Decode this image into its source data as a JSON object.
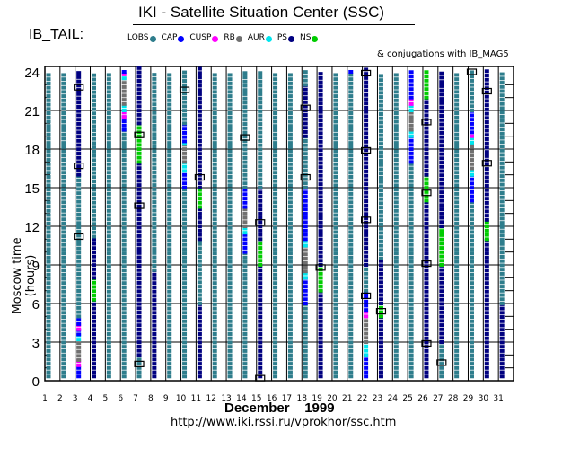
{
  "header": {
    "title": "IKI - Satellite Situation Center (SSC)",
    "satellite": "IB_TAIL:",
    "conjugations": "& conjugations with IB_MAG5",
    "month": "December    1999",
    "url": "http://www.iki.rssi.ru/vprokhor/ssc.htm"
  },
  "legend": [
    {
      "label": "LOBS",
      "color": "#2e7d8c"
    },
    {
      "label": "CAP",
      "color": "#0000ff"
    },
    {
      "label": "CUSP",
      "color": "#ff00ff"
    },
    {
      "label": "RB",
      "color": "#707070"
    },
    {
      "label": "AUR",
      "color": "#00e5ee"
    },
    {
      "label": "PS",
      "color": "#000080"
    },
    {
      "label": "NS",
      "color": "#00cc00"
    }
  ],
  "chart_data": {
    "type": "scatter",
    "title": "IKI - Satellite Situation Center (SSC)",
    "xlabel": "December    1999",
    "ylabel": "Moscow time (hours)",
    "x_ticks": [
      "1",
      "2",
      "3",
      "4",
      "5",
      "6",
      "7",
      "8",
      "9",
      "10",
      "11",
      "12",
      "13",
      "14",
      "15",
      "16",
      "17",
      "18",
      "19",
      "20",
      "21",
      "22",
      "23",
      "24",
      "25",
      "26",
      "27",
      "28",
      "29",
      "30",
      "31"
    ],
    "y_ticks": [
      "0",
      "3",
      "6",
      "9",
      "12",
      "15",
      "18",
      "21",
      "24"
    ],
    "ylim": [
      0,
      24
    ],
    "xlim": [
      1,
      31
    ],
    "grid": true,
    "days": [
      {
        "day": 1,
        "segments": [
          [
            "LOBS",
            0,
            24
          ]
        ]
      },
      {
        "day": 2,
        "segments": [
          [
            "LOBS",
            0,
            24
          ]
        ]
      },
      {
        "day": 3,
        "segments": [
          [
            "CAP",
            0,
            1.2
          ],
          [
            "CUSP",
            1.2,
            1.6
          ],
          [
            "RB",
            1.6,
            3.2
          ],
          [
            "AUR",
            3.2,
            3.6
          ],
          [
            "CAP",
            3.6,
            4
          ],
          [
            "CUSP",
            4,
            4.4
          ],
          [
            "CAP",
            4.4,
            5
          ],
          [
            "LOBS",
            5,
            16
          ],
          [
            "PS",
            16,
            24
          ]
        ]
      },
      {
        "day": 4,
        "segments": [
          [
            "PS",
            0,
            6.3
          ],
          [
            "NS",
            6.3,
            8
          ],
          [
            "PS",
            8,
            11.2
          ],
          [
            "LOBS",
            11.2,
            24
          ]
        ]
      },
      {
        "day": 5,
        "segments": [
          [
            "LOBS",
            0,
            24
          ]
        ]
      },
      {
        "day": 6,
        "segments": [
          [
            "LOBS",
            0,
            19.5
          ],
          [
            "CAP",
            19.5,
            20.5
          ],
          [
            "CUSP",
            20.5,
            21
          ],
          [
            "AUR",
            21,
            21.5
          ],
          [
            "RB",
            21.5,
            23.5
          ],
          [
            "AUR",
            23.5,
            24
          ],
          [
            "CUSP",
            23.8,
            24
          ],
          [
            "CAP",
            24,
            24.5
          ]
        ]
      },
      {
        "day": 7,
        "segments": [
          [
            "LOBS",
            0,
            2
          ],
          [
            "PS",
            2,
            17
          ],
          [
            "NS",
            17,
            20
          ],
          [
            "PS",
            20,
            24.5
          ]
        ]
      },
      {
        "day": 8,
        "segments": [
          [
            "PS",
            0,
            8.6
          ],
          [
            "LOBS",
            8.6,
            24
          ]
        ]
      },
      {
        "day": 9,
        "segments": [
          [
            "LOBS",
            0,
            24
          ]
        ]
      },
      {
        "day": 10,
        "segments": [
          [
            "LOBS",
            0,
            15
          ],
          [
            "CAP",
            15,
            16.3
          ],
          [
            "AUR",
            16.3,
            17
          ],
          [
            "RB",
            17,
            18.4
          ],
          [
            "AUR",
            18.4,
            18.6
          ],
          [
            "CAP",
            18.6,
            20
          ],
          [
            "LOBS",
            20,
            24
          ]
        ]
      },
      {
        "day": 11,
        "segments": [
          [
            "PS",
            0,
            6
          ],
          [
            "LOBS",
            6,
            11
          ],
          [
            "PS",
            11,
            13.5
          ],
          [
            "NS",
            13.5,
            15
          ],
          [
            "PS",
            15,
            24.5
          ]
        ]
      },
      {
        "day": 12,
        "segments": [
          [
            "LOBS",
            0,
            24
          ]
        ]
      },
      {
        "day": 13,
        "segments": [
          [
            "LOBS",
            0,
            24
          ]
        ]
      },
      {
        "day": 14,
        "segments": [
          [
            "LOBS",
            0,
            10
          ],
          [
            "CAP",
            10,
            11.5
          ],
          [
            "AUR",
            11.5,
            12
          ],
          [
            "RB",
            12,
            13.5
          ],
          [
            "CAP",
            13.5,
            15
          ],
          [
            "LOBS",
            15,
            24
          ]
        ]
      },
      {
        "day": 15,
        "segments": [
          [
            "PS",
            0,
            9
          ],
          [
            "NS",
            9,
            11
          ],
          [
            "PS",
            11,
            15
          ],
          [
            "LOBS",
            15,
            24
          ]
        ]
      },
      {
        "day": 16,
        "segments": [
          [
            "LOBS",
            0,
            24
          ]
        ]
      },
      {
        "day": 17,
        "segments": [
          [
            "LOBS",
            0,
            24
          ]
        ]
      },
      {
        "day": 18,
        "segments": [
          [
            "LOBS",
            0,
            6
          ],
          [
            "CAP",
            6,
            8
          ],
          [
            "AUR",
            8,
            8.5
          ],
          [
            "RB",
            8.5,
            10.5
          ],
          [
            "AUR",
            10.5,
            11
          ],
          [
            "CAP",
            11,
            15
          ],
          [
            "LOBS",
            15,
            19
          ],
          [
            "PS",
            19,
            23
          ],
          [
            "LOBS",
            23,
            24
          ]
        ]
      },
      {
        "day": 19,
        "segments": [
          [
            "PS",
            0,
            7
          ],
          [
            "NS",
            7,
            9
          ],
          [
            "PS",
            9,
            24
          ]
        ]
      },
      {
        "day": 20,
        "segments": [
          [
            "LOBS",
            0,
            24
          ]
        ]
      },
      {
        "day": 21,
        "segments": [
          [
            "LOBS",
            0,
            24
          ],
          [
            "CAP",
            24,
            24.5
          ]
        ]
      },
      {
        "day": 22,
        "segments": [
          [
            "CAP",
            0,
            2
          ],
          [
            "AUR",
            2,
            3
          ],
          [
            "RB",
            3,
            5
          ],
          [
            "CUSP",
            5,
            5.5
          ],
          [
            "CAP",
            5.5,
            7
          ],
          [
            "LOBS",
            7,
            9
          ],
          [
            "PS",
            9,
            24.5
          ]
        ]
      },
      {
        "day": 23,
        "segments": [
          [
            "PS",
            0,
            5
          ],
          [
            "NS",
            5,
            6
          ],
          [
            "PS",
            6,
            9.5
          ],
          [
            "LOBS",
            9.5,
            24
          ]
        ]
      },
      {
        "day": 24,
        "segments": [
          [
            "LOBS",
            0,
            24
          ]
        ]
      },
      {
        "day": 25,
        "segments": [
          [
            "LOBS",
            0,
            17
          ],
          [
            "CAP",
            17,
            19
          ],
          [
            "AUR",
            19,
            19.5
          ],
          [
            "RB",
            19.5,
            21
          ],
          [
            "AUR",
            21,
            21.5
          ],
          [
            "CUSP",
            21.5,
            22
          ],
          [
            "CAP",
            22,
            24.5
          ]
        ]
      },
      {
        "day": 26,
        "segments": [
          [
            "PS",
            0,
            14
          ],
          [
            "NS",
            14,
            16
          ],
          [
            "PS",
            16,
            22
          ],
          [
            "NS",
            22,
            24.5
          ]
        ]
      },
      {
        "day": 27,
        "segments": [
          [
            "LOBS",
            0,
            3
          ],
          [
            "PS",
            3,
            9
          ],
          [
            "NS",
            9,
            12
          ],
          [
            "PS",
            12,
            24
          ]
        ]
      },
      {
        "day": 28,
        "segments": [
          [
            "LOBS",
            0,
            24
          ]
        ]
      },
      {
        "day": 29,
        "segments": [
          [
            "LOBS",
            0,
            14
          ],
          [
            "CAP",
            14,
            16
          ],
          [
            "AUR",
            16,
            16.5
          ],
          [
            "RB",
            16.5,
            18.5
          ],
          [
            "AUR",
            18.5,
            19
          ],
          [
            "CUSP",
            19,
            19.3
          ],
          [
            "CAP",
            19.3,
            21
          ],
          [
            "LOBS",
            21,
            24
          ]
        ]
      },
      {
        "day": 30,
        "segments": [
          [
            "PS",
            0,
            11
          ],
          [
            "NS",
            11,
            12.5
          ],
          [
            "PS",
            12.5,
            24.5
          ]
        ]
      },
      {
        "day": 31,
        "segments": [
          [
            "PS",
            0,
            6
          ],
          [
            "LOBS",
            6,
            24
          ]
        ]
      }
    ],
    "conjugation_markers": [
      {
        "day": 3,
        "hour": 11.2
      },
      {
        "day": 3,
        "hour": 16.7
      },
      {
        "day": 3,
        "hour": 22.8
      },
      {
        "day": 7,
        "hour": 1.3
      },
      {
        "day": 7,
        "hour": 13.6
      },
      {
        "day": 7,
        "hour": 19.1
      },
      {
        "day": 10,
        "hour": 22.6
      },
      {
        "day": 11,
        "hour": 15.8
      },
      {
        "day": 14,
        "hour": 18.9
      },
      {
        "day": 15,
        "hour": 0.2
      },
      {
        "day": 15,
        "hour": 12.3
      },
      {
        "day": 18,
        "hour": 15.8
      },
      {
        "day": 18,
        "hour": 21.2
      },
      {
        "day": 19,
        "hour": 8.8
      },
      {
        "day": 22,
        "hour": 6.6
      },
      {
        "day": 22,
        "hour": 12.5
      },
      {
        "day": 22,
        "hour": 17.9
      },
      {
        "day": 22,
        "hour": 23.9
      },
      {
        "day": 23,
        "hour": 5.4
      },
      {
        "day": 26,
        "hour": 2.9
      },
      {
        "day": 26,
        "hour": 9.1
      },
      {
        "day": 26,
        "hour": 14.6
      },
      {
        "day": 26,
        "hour": 20.1
      },
      {
        "day": 27,
        "hour": 1.4
      },
      {
        "day": 29,
        "hour": 24
      },
      {
        "day": 30,
        "hour": 16.9
      },
      {
        "day": 30,
        "hour": 22.5
      }
    ]
  }
}
